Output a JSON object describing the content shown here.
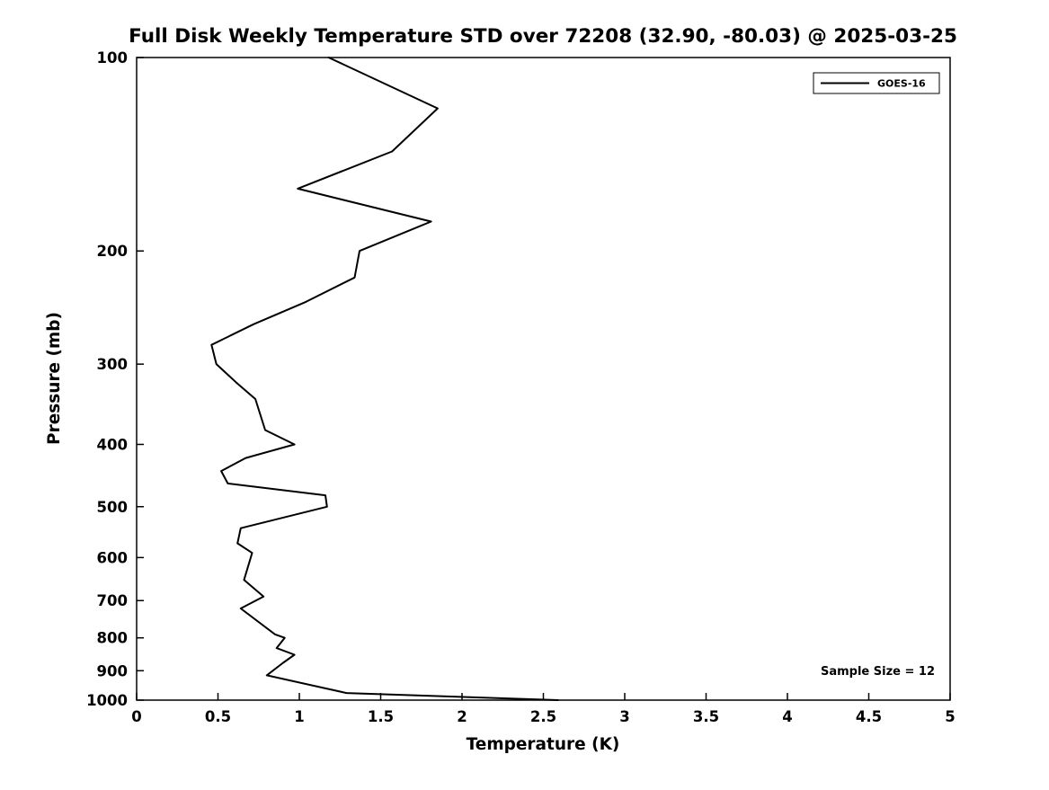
{
  "chart_data": {
    "type": "line",
    "title": "Full Disk Weekly Temperature STD over 72208 (32.90, -80.03) @ 2025-03-25",
    "xlabel": "Temperature (K)",
    "ylabel": "Pressure (mb)",
    "xlim": [
      0,
      5
    ],
    "ylim": [
      100,
      1000
    ],
    "yscale": "log",
    "y_inverted": true,
    "grid": false,
    "xticks": [
      "0",
      "0.5",
      "1",
      "1.5",
      "2",
      "2.5",
      "3",
      "3.5",
      "4",
      "4.5",
      "5"
    ],
    "xtick_values": [
      0,
      0.5,
      1,
      1.5,
      2,
      2.5,
      3,
      3.5,
      4,
      4.5,
      5
    ],
    "yticks": [
      "100",
      "200",
      "300",
      "400",
      "500",
      "600",
      "700",
      "800",
      "900",
      "1000"
    ],
    "ytick_values": [
      100,
      200,
      300,
      400,
      500,
      600,
      700,
      800,
      900,
      1000
    ],
    "line_color": "#000000",
    "legend": {
      "position": "top-right",
      "entries": [
        {
          "label": "GOES-16",
          "color": "#000000"
        }
      ]
    },
    "annotation": "Sample Size = 12",
    "series": [
      {
        "name": "GOES-16",
        "pressure_mb": [
          100,
          120,
          140,
          160,
          180,
          200,
          220,
          240,
          260,
          280,
          300,
          320,
          340,
          380,
          400,
          420,
          440,
          460,
          480,
          500,
          540,
          570,
          590,
          650,
          690,
          720,
          790,
          800,
          830,
          850,
          875,
          915,
          975,
          1000
        ],
        "temperature_std_k": [
          1.18,
          1.85,
          1.57,
          0.99,
          1.81,
          1.37,
          1.34,
          1.04,
          0.72,
          0.46,
          0.49,
          0.61,
          0.73,
          0.79,
          0.97,
          0.67,
          0.52,
          0.56,
          1.16,
          1.17,
          0.64,
          0.62,
          0.71,
          0.66,
          0.78,
          0.64,
          0.85,
          0.91,
          0.86,
          0.97,
          0.9,
          0.8,
          1.29,
          2.59
        ]
      }
    ]
  }
}
